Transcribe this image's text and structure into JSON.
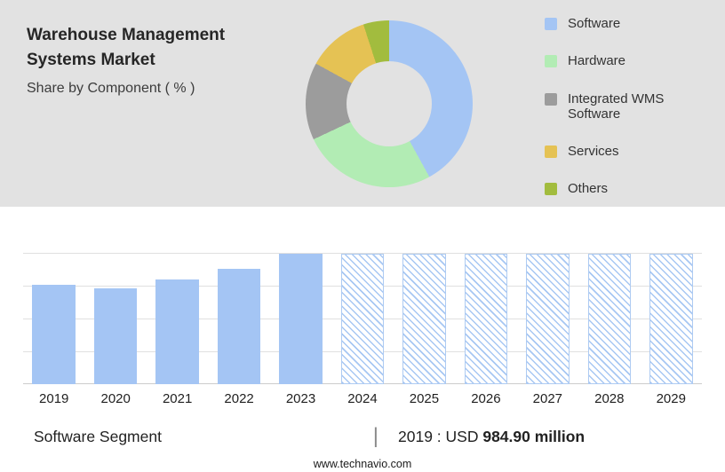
{
  "header": {
    "title": "Warehouse Management Systems Market",
    "subtitle": "Share by Component ( % )"
  },
  "chart_data": [
    {
      "type": "pie",
      "donut": true,
      "title": "Share by Component ( % )",
      "legend_position": "right",
      "segments": [
        {
          "label": "Software",
          "value": 42,
          "color": "#a4c5f4"
        },
        {
          "label": "Hardware",
          "value": 26,
          "color": "#b2ecb4"
        },
        {
          "label": "Integrated WMS Software",
          "value": 15,
          "color": "#9c9c9c"
        },
        {
          "label": "Services",
          "value": 12,
          "color": "#e5c254"
        },
        {
          "label": "Others",
          "value": 5,
          "color": "#a2bc3e"
        }
      ]
    },
    {
      "type": "bar",
      "categories": [
        "2019",
        "2020",
        "2021",
        "2022",
        "2023",
        "2024",
        "2025",
        "2026",
        "2027",
        "2028",
        "2029"
      ],
      "values_pct_of_max": [
        76,
        73,
        80,
        88,
        99,
        99,
        99,
        99,
        99,
        99,
        99
      ],
      "styles": [
        "solid",
        "solid",
        "solid",
        "solid",
        "solid",
        "hatched",
        "hatched",
        "hatched",
        "hatched",
        "hatched",
        "hatched"
      ],
      "bar_color": "#a4c5f4",
      "known_points": [
        {
          "category": "2019",
          "value_label": "USD 984.90 million"
        }
      ],
      "grid": "horizontal",
      "legend_position": "none"
    }
  ],
  "footer": {
    "segment_label": "Software Segment",
    "separator": "|",
    "value_prefix": "2019 : USD",
    "value_bold": "984.90 million",
    "website": "www.technavio.com"
  }
}
